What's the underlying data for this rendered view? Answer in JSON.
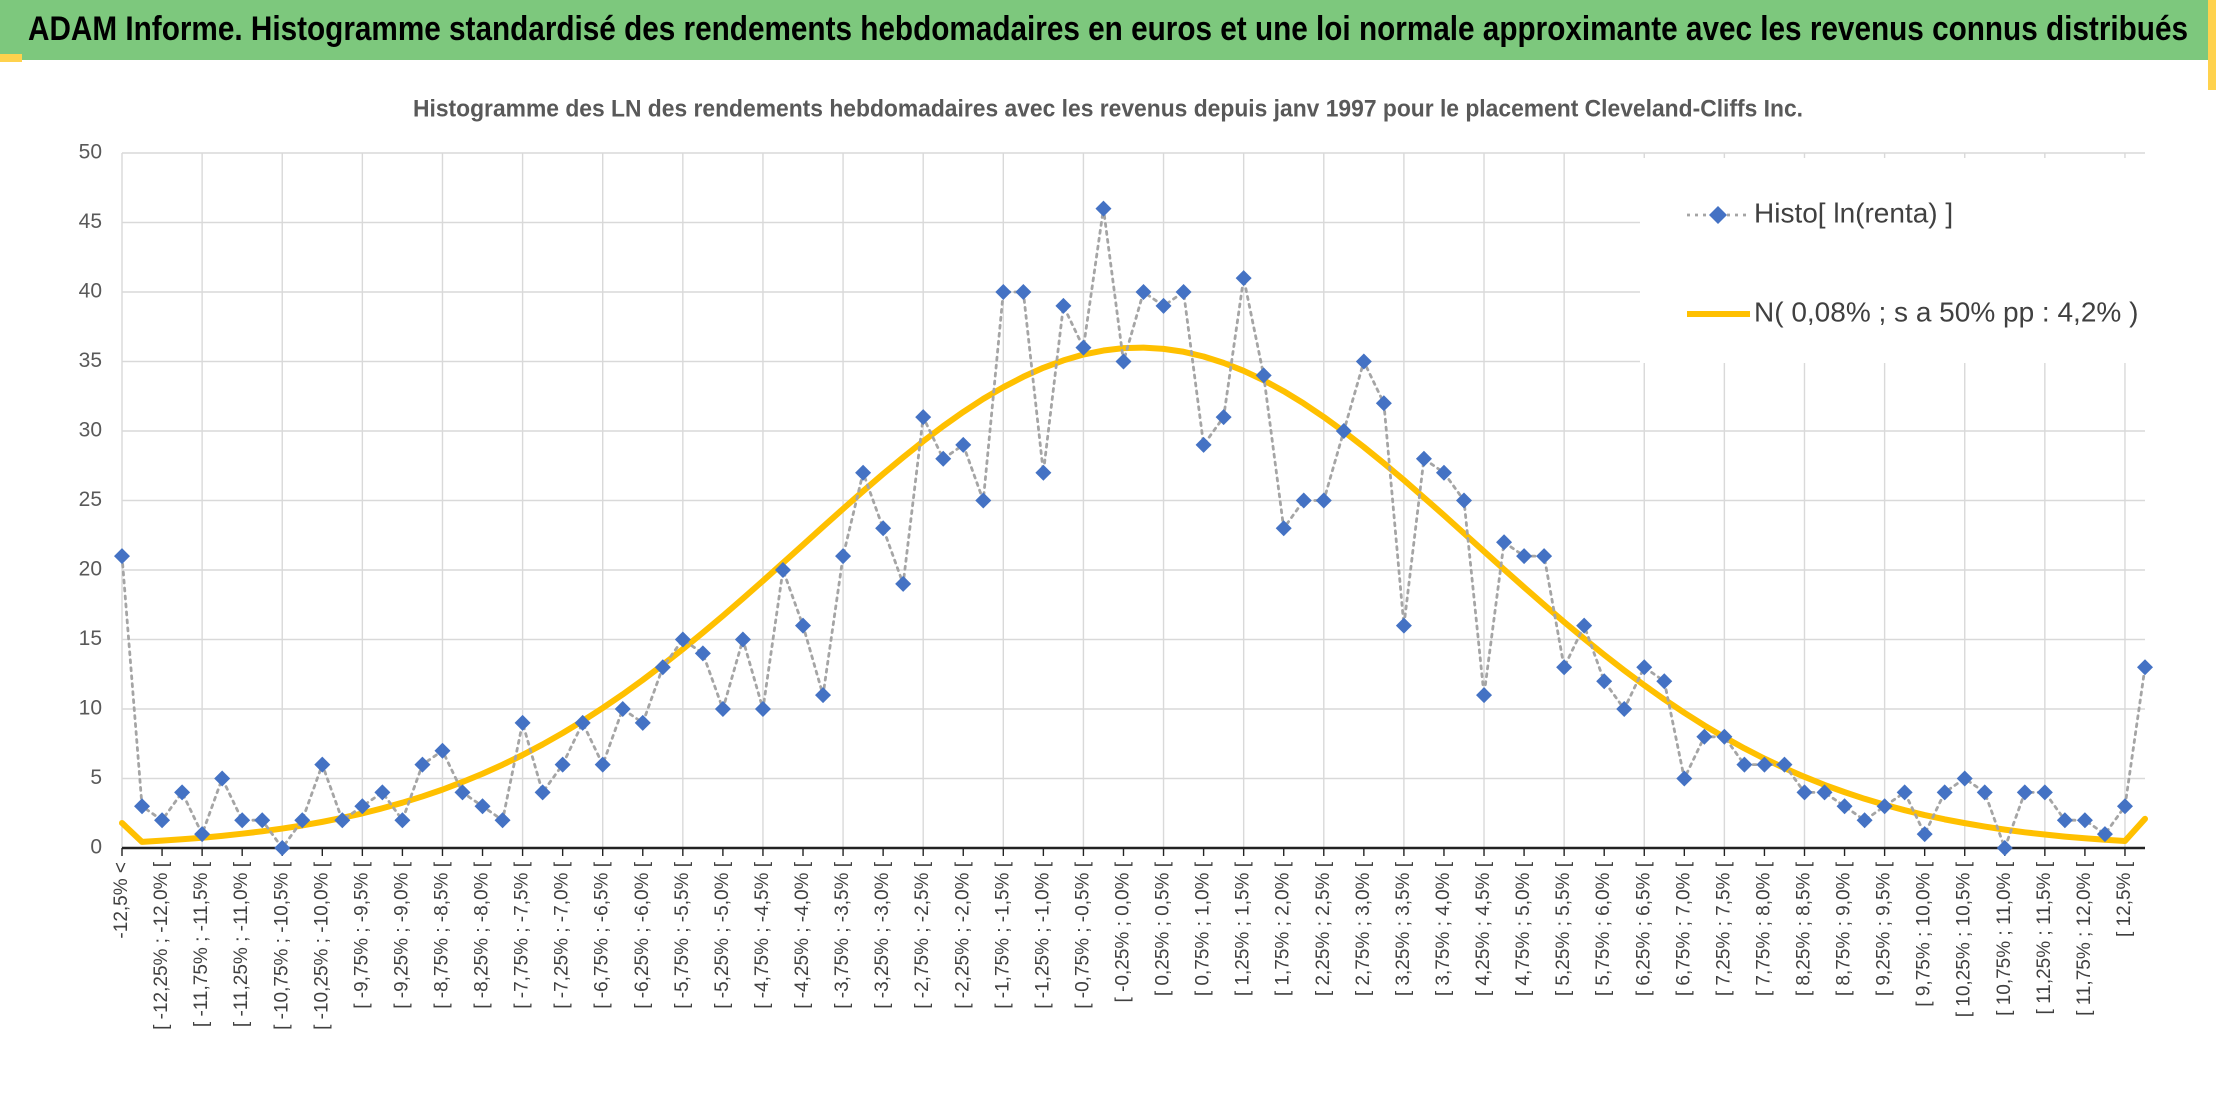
{
  "chart_data": {
    "type": "line",
    "banner": "ADAM Informe. Histogramme standardisé des rendements hebdomadaires en euros et une loi normale approximante avec les revenus connus distribués",
    "title": "Histogramme des LN des rendements hebdomadaires avec les revenus depuis janv 1997 pour le placement Cleveland-Cliffs Inc.",
    "categories": [
      "-12,5% <",
      null,
      "[ -12,25% ; -12,0% [",
      null,
      "[ -11,75% ; -11,5% [",
      null,
      "[ -11,25% ; -11,0% [",
      null,
      "[ -10,75% ; -10,5% [",
      null,
      "[ -10,25% ; -10,0% [",
      null,
      "[ -9,75% ; -9,5% [",
      null,
      "[ -9,25% ; -9,0% [",
      null,
      "[ -8,75% ; -8,5% [",
      null,
      "[ -8,25% ; -8,0% [",
      null,
      "[ -7,75% ; -7,5% [",
      null,
      "[ -7,25% ; -7,0% [",
      null,
      "[ -6,75% ; -6,5% [",
      null,
      "[ -6,25% ; -6,0% [",
      null,
      "[ -5,75% ; -5,5% [",
      null,
      "[ -5,25% ; -5,0% [",
      null,
      "[ -4,75% ; -4,5% [",
      null,
      "[ -4,25% ; -4,0% [",
      null,
      "[ -3,75% ; -3,5% [",
      null,
      "[ -3,25% ; -3,0% [",
      null,
      "[ -2,75% ; -2,5% [",
      null,
      "[ -2,25% ; -2,0% [",
      null,
      "[ -1,75% ; -1,5% [",
      null,
      "[ -1,25% ; -1,0% [",
      null,
      "[ -0,75% ; -0,5% [",
      null,
      "[ -0,25% ; 0,0% [",
      null,
      "[ 0,25% ; 0,5% [",
      null,
      "[ 0,75% ; 1,0% [",
      null,
      "[ 1,25% ; 1,5% [",
      null,
      "[ 1,75% ; 2,0% [",
      null,
      "[ 2,25% ; 2,5% [",
      null,
      "[ 2,75% ; 3,0% [",
      null,
      "[ 3,25% ; 3,5% [",
      null,
      "[ 3,75% ; 4,0% [",
      null,
      "[ 4,25% ; 4,5% [",
      null,
      "[ 4,75% ; 5,0% [",
      null,
      "[ 5,25% ; 5,5% [",
      null,
      "[ 5,75% ; 6,0% [",
      null,
      "[ 6,25% ; 6,5% [",
      null,
      "[ 6,75% ; 7,0% [",
      null,
      "[ 7,25% ; 7,5% [",
      null,
      "[ 7,75% ; 8,0% [",
      null,
      "[ 8,25% ; 8,5% [",
      null,
      "[ 8,75% ; 9,0% [",
      null,
      "[ 9,25% ; 9,5% [",
      null,
      "[ 9,75% ; 10,0% [",
      null,
      "[ 10,25% ; 10,5% [",
      null,
      "[ 10,75% ; 11,0% [",
      null,
      "[ 11,25% ; 11,5% [",
      null,
      "[ 11,75% ; 12,0% [",
      null,
      "[ 12,5% [",
      null
    ],
    "series": [
      {
        "name": "Histo[ ln(renta) ]",
        "color": "#4472c4",
        "line_color": "#a5a5a5",
        "line_style": "dotted",
        "marker": "diamond",
        "values": [
          21,
          3,
          2,
          4,
          1,
          5,
          2,
          2,
          0,
          2,
          6,
          2,
          3,
          4,
          2,
          6,
          7,
          4,
          3,
          2,
          9,
          4,
          6,
          9,
          6,
          10,
          9,
          13,
          15,
          14,
          10,
          15,
          10,
          20,
          16,
          11,
          21,
          27,
          23,
          19,
          31,
          28,
          29,
          25,
          40,
          40,
          27,
          39,
          36,
          46,
          35,
          40,
          39,
          40,
          29,
          31,
          41,
          34,
          23,
          25,
          25,
          30,
          35,
          32,
          16,
          28,
          27,
          25,
          11,
          22,
          21,
          21,
          13,
          16,
          12,
          10,
          13,
          12,
          5,
          8,
          8,
          6,
          6,
          6,
          4,
          4,
          3,
          2,
          3,
          4,
          1,
          4,
          5,
          4,
          0,
          4,
          4,
          2,
          2,
          1,
          3,
          13
        ]
      },
      {
        "name": "N( 0,08% ; s a 50% pp : 4,2% )",
        "color": "#ffc000",
        "line_style": "solid",
        "values": [
          1.8,
          0.44,
          0.53,
          0.63,
          0.74,
          0.87,
          1.03,
          1.2,
          1.4,
          1.62,
          1.88,
          2.17,
          2.49,
          2.86,
          3.26,
          3.71,
          4.2,
          4.75,
          5.34,
          5.99,
          6.69,
          7.45,
          8.27,
          9.14,
          10.07,
          11.05,
          12.09,
          13.18,
          14.31,
          15.49,
          16.7,
          17.95,
          19.22,
          20.51,
          21.81,
          23.11,
          24.4,
          25.67,
          26.91,
          28.11,
          29.26,
          30.35,
          31.37,
          32.31,
          33.15,
          33.9,
          34.55,
          35.08,
          35.5,
          35.79,
          35.96,
          36,
          35.91,
          35.7,
          35.36,
          34.9,
          34.33,
          33.65,
          32.86,
          31.98,
          31.01,
          29.96,
          28.85,
          27.68,
          26.47,
          25.21,
          23.94,
          22.64,
          21.34,
          20.04,
          18.76,
          17.5,
          16.26,
          15.06,
          13.9,
          12.78,
          11.71,
          10.69,
          9.73,
          8.82,
          7.97,
          7.17,
          6.43,
          5.75,
          5.12,
          4.54,
          4.02,
          3.54,
          3.11,
          2.72,
          2.37,
          2.06,
          1.79,
          1.54,
          1.32,
          1.13,
          0.97,
          0.82,
          0.7,
          0.59,
          0.5,
          2.1
        ]
      }
    ],
    "ylim": [
      0,
      50
    ],
    "yticks": [
      0,
      5,
      10,
      15,
      20,
      25,
      30,
      35,
      40,
      45,
      50
    ],
    "grid": true,
    "legend": "top-right"
  }
}
